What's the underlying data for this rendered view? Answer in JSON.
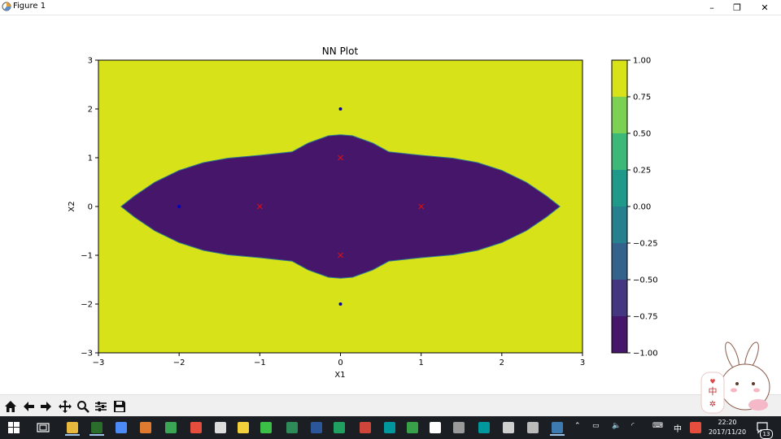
{
  "window": {
    "title": "Figure 1",
    "controls": [
      "–",
      "❐",
      "✕"
    ]
  },
  "chart_data": {
    "type": "heatmap",
    "title": "NN Plot",
    "xlabel": "X1",
    "ylabel": "X2",
    "xlim": [
      -3,
      3
    ],
    "ylim": [
      -3,
      3
    ],
    "xticks": [
      -3,
      -2,
      -1,
      0,
      1,
      2,
      3
    ],
    "yticks": [
      -3,
      -2,
      -1,
      0,
      1,
      2,
      3
    ],
    "xtick_labels": [
      "−3",
      "−2",
      "−1",
      "0",
      "1",
      "2",
      "3"
    ],
    "ytick_labels": [
      "−3",
      "−2",
      "−1",
      "0",
      "1",
      "2",
      "3"
    ],
    "background_region": {
      "value": 1.0,
      "color": "#d8e219"
    },
    "inner_region": {
      "value": -1.0,
      "color": "#46166b",
      "boundary_points": [
        [
          -2.72,
          0
        ],
        [
          -2.55,
          0.22
        ],
        [
          -2.3,
          0.5
        ],
        [
          -2.0,
          0.74
        ],
        [
          -1.7,
          0.9
        ],
        [
          -1.4,
          0.99
        ],
        [
          -1.0,
          1.05
        ],
        [
          -0.6,
          1.12
        ],
        [
          -0.4,
          1.3
        ],
        [
          -0.15,
          1.45
        ],
        [
          0,
          1.47
        ],
        [
          0.15,
          1.45
        ],
        [
          0.4,
          1.3
        ],
        [
          0.6,
          1.12
        ],
        [
          1.0,
          1.05
        ],
        [
          1.4,
          0.99
        ],
        [
          1.7,
          0.9
        ],
        [
          2.0,
          0.74
        ],
        [
          2.3,
          0.5
        ],
        [
          2.55,
          0.22
        ],
        [
          2.72,
          0
        ],
        [
          2.55,
          -0.22
        ],
        [
          2.3,
          -0.5
        ],
        [
          2.0,
          -0.74
        ],
        [
          1.7,
          -0.9
        ],
        [
          1.4,
          -0.99
        ],
        [
          1.0,
          -1.05
        ],
        [
          0.6,
          -1.12
        ],
        [
          0.4,
          -1.3
        ],
        [
          0.15,
          -1.45
        ],
        [
          0,
          -1.47
        ],
        [
          -0.15,
          -1.45
        ],
        [
          -0.4,
          -1.3
        ],
        [
          -0.6,
          -1.12
        ],
        [
          -1.0,
          -1.05
        ],
        [
          -1.4,
          -0.99
        ],
        [
          -1.7,
          -0.9
        ],
        [
          -2.0,
          -0.74
        ],
        [
          -2.3,
          -0.5
        ],
        [
          -2.55,
          -0.22
        ]
      ]
    },
    "points_dots": {
      "color": "#0000cc",
      "x": [
        -2,
        0,
        0
      ],
      "y": [
        0,
        2,
        -2
      ]
    },
    "points_crosses": {
      "color": "#e01010",
      "x": [
        -1,
        0,
        0,
        1
      ],
      "y": [
        0,
        1,
        -1,
        0
      ]
    },
    "colorbar": {
      "levels": [
        -1.0,
        -0.75,
        -0.5,
        -0.25,
        0.0,
        0.25,
        0.5,
        0.75,
        1.0
      ],
      "labels": [
        "−1.00",
        "−0.75",
        "−0.50",
        "−0.25",
        "0.00",
        "0.25",
        "0.50",
        "0.75",
        "1.00"
      ],
      "colors": [
        "#46166b",
        "#453681",
        "#33638d",
        "#27808e",
        "#1f9a8a",
        "#3cb879",
        "#7dd152",
        "#d8e219"
      ]
    }
  },
  "toolbar": {
    "buttons": [
      {
        "name": "home-icon",
        "glyph": "⌂"
      },
      {
        "name": "back-icon",
        "glyph": "←"
      },
      {
        "name": "forward-icon",
        "glyph": "→"
      },
      {
        "name": "pan-icon",
        "glyph": "✥"
      },
      {
        "name": "zoom-icon",
        "glyph": "⚲"
      },
      {
        "name": "configure-subplots-icon",
        "glyph": "☰"
      },
      {
        "name": "save-icon",
        "glyph": "💾"
      }
    ]
  },
  "taskbar": {
    "tray": {
      "ime": "中",
      "time": "22:20",
      "date": "2017/11/20",
      "notifications": "13"
    },
    "apps": [
      {
        "name": "file-explorer-icon",
        "color": "#e8b93c"
      },
      {
        "name": "terminal-icon",
        "color": "#2b6d2b"
      },
      {
        "name": "chrome-icon",
        "color": "#4c8bf5"
      },
      {
        "name": "sublime-icon",
        "color": "#e07a2e"
      },
      {
        "name": "app-green-icon",
        "color": "#3aa655"
      },
      {
        "name": "sogou-icon",
        "color": "#e54d3d"
      },
      {
        "name": "pen-icon",
        "color": "#dddddd"
      },
      {
        "name": "notes-icon",
        "color": "#f2d13a"
      },
      {
        "name": "wechat-icon",
        "color": "#3cbf47"
      },
      {
        "name": "excel-icon",
        "color": "#2e8b57"
      },
      {
        "name": "word-icon",
        "color": "#2b579a"
      },
      {
        "name": "sheets-icon",
        "color": "#20a060"
      },
      {
        "name": "git-icon",
        "color": "#d0453a"
      },
      {
        "name": "arduino-icon",
        "color": "#00979d"
      },
      {
        "name": "app-stack-icon",
        "color": "#38a048"
      },
      {
        "name": "settings-icon",
        "color": "#ffffff"
      },
      {
        "name": "monitor-icon",
        "color": "#9a9a9a"
      },
      {
        "name": "arduino2-icon",
        "color": "#00979d"
      },
      {
        "name": "tools-icon",
        "color": "#cfcfcf"
      },
      {
        "name": "vm-icon",
        "color": "#bbbbbb"
      },
      {
        "name": "python-icon",
        "color": "#3d7ab0"
      }
    ]
  }
}
